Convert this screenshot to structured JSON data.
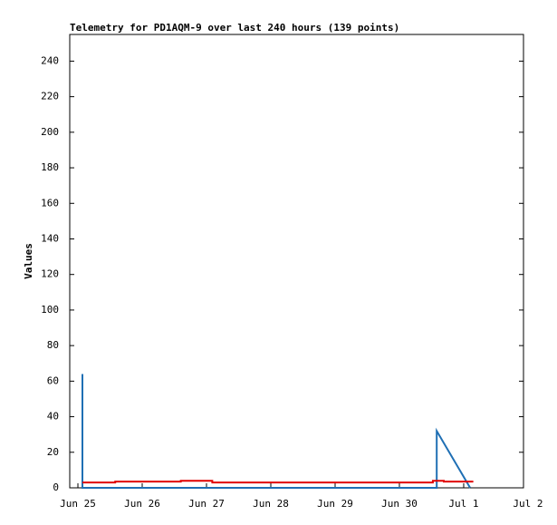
{
  "chart_data": {
    "type": "line",
    "title": "Telemetry for PD1AQM-9 over last 240 hours (139 points)",
    "y_label": "Values",
    "xlim": [
      -0.127,
      6.93
    ],
    "xticks": [
      {
        "value": 0,
        "label": "Jun 25"
      },
      {
        "value": 1,
        "label": "Jun 26"
      },
      {
        "value": 2,
        "label": "Jun 27"
      },
      {
        "value": 3,
        "label": "Jun 28"
      },
      {
        "value": 4,
        "label": "Jun 29"
      },
      {
        "value": 5,
        "label": "Jun 30"
      },
      {
        "value": 6,
        "label": "Jul 1"
      },
      {
        "value": 7,
        "label": "Jul 2"
      }
    ],
    "ylim": [
      0,
      255
    ],
    "yticks": [
      0,
      20,
      40,
      60,
      80,
      100,
      120,
      140,
      160,
      180,
      200,
      220,
      240
    ],
    "series": [
      {
        "color": "#1f6fb4",
        "x": [
          0.07,
          0.07,
          5.58,
          5.58,
          6.1
        ],
        "values": [
          64,
          0,
          0,
          32,
          0
        ]
      },
      {
        "color": "#e00000",
        "x": [
          0.07,
          0.58,
          0.58,
          1.6,
          1.6,
          2.09,
          2.09,
          5.52,
          5.52,
          5.69,
          5.69,
          6.15
        ],
        "values": [
          3,
          3,
          3.5,
          3.5,
          4,
          4,
          3,
          3,
          4,
          4,
          3.5,
          3.5
        ]
      }
    ]
  }
}
